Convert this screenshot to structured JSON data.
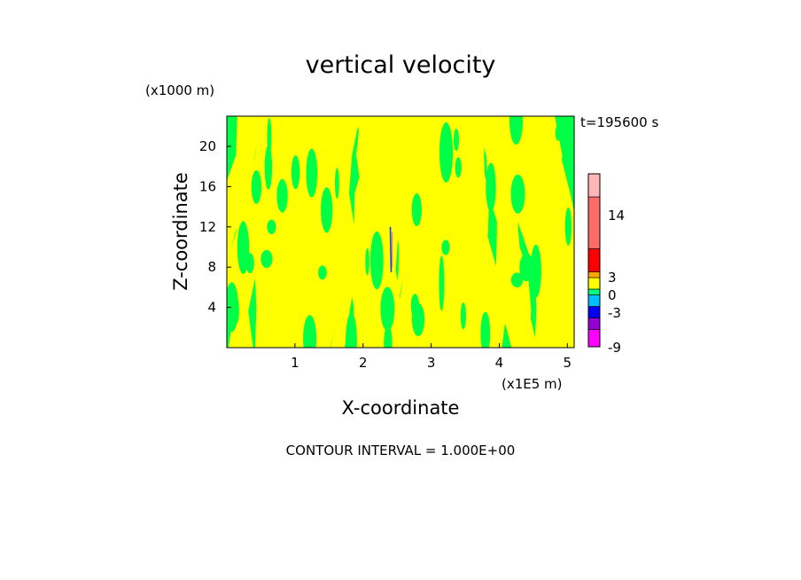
{
  "chart_data": {
    "type": "heatmap",
    "title": "vertical velocity",
    "y_unit_label": "(x1000 m)",
    "x_unit_label": "(x1E5 m)",
    "xlabel": "X-coordinate",
    "ylabel": "Z-coordinate",
    "time_label": "t=195600 s",
    "footer": "CONTOUR INTERVAL = 1.000E+00",
    "x_range": [
      0,
      5.1
    ],
    "y_range": [
      0,
      23
    ],
    "x_ticks": [
      1,
      2,
      3,
      4,
      5
    ],
    "y_ticks": [
      4,
      8,
      12,
      16,
      20
    ],
    "contour_interval": 1.0,
    "dominant_field": "alternating bands of small positive (yellow, ~0 to 1) and small negative (green, ~-1 to 0) values; weak feature near x=2.4, z=8-12",
    "colorbar": {
      "levels": [
        -9,
        -3,
        0,
        3,
        14
      ],
      "tick_labels": [
        "-9",
        "-3",
        "0",
        "3",
        "14"
      ],
      "colors": [
        "#ff00ff",
        "#9400d3",
        "#0000ff",
        "#00bfff",
        "#00ff7f",
        "#ffff00",
        "#ffa500",
        "#ff0000",
        "#ff6a6a",
        "#ffb6b6"
      ]
    },
    "colors": {
      "yellow": "#ffff00",
      "green": "#00ff47",
      "frame": "#000000"
    }
  }
}
